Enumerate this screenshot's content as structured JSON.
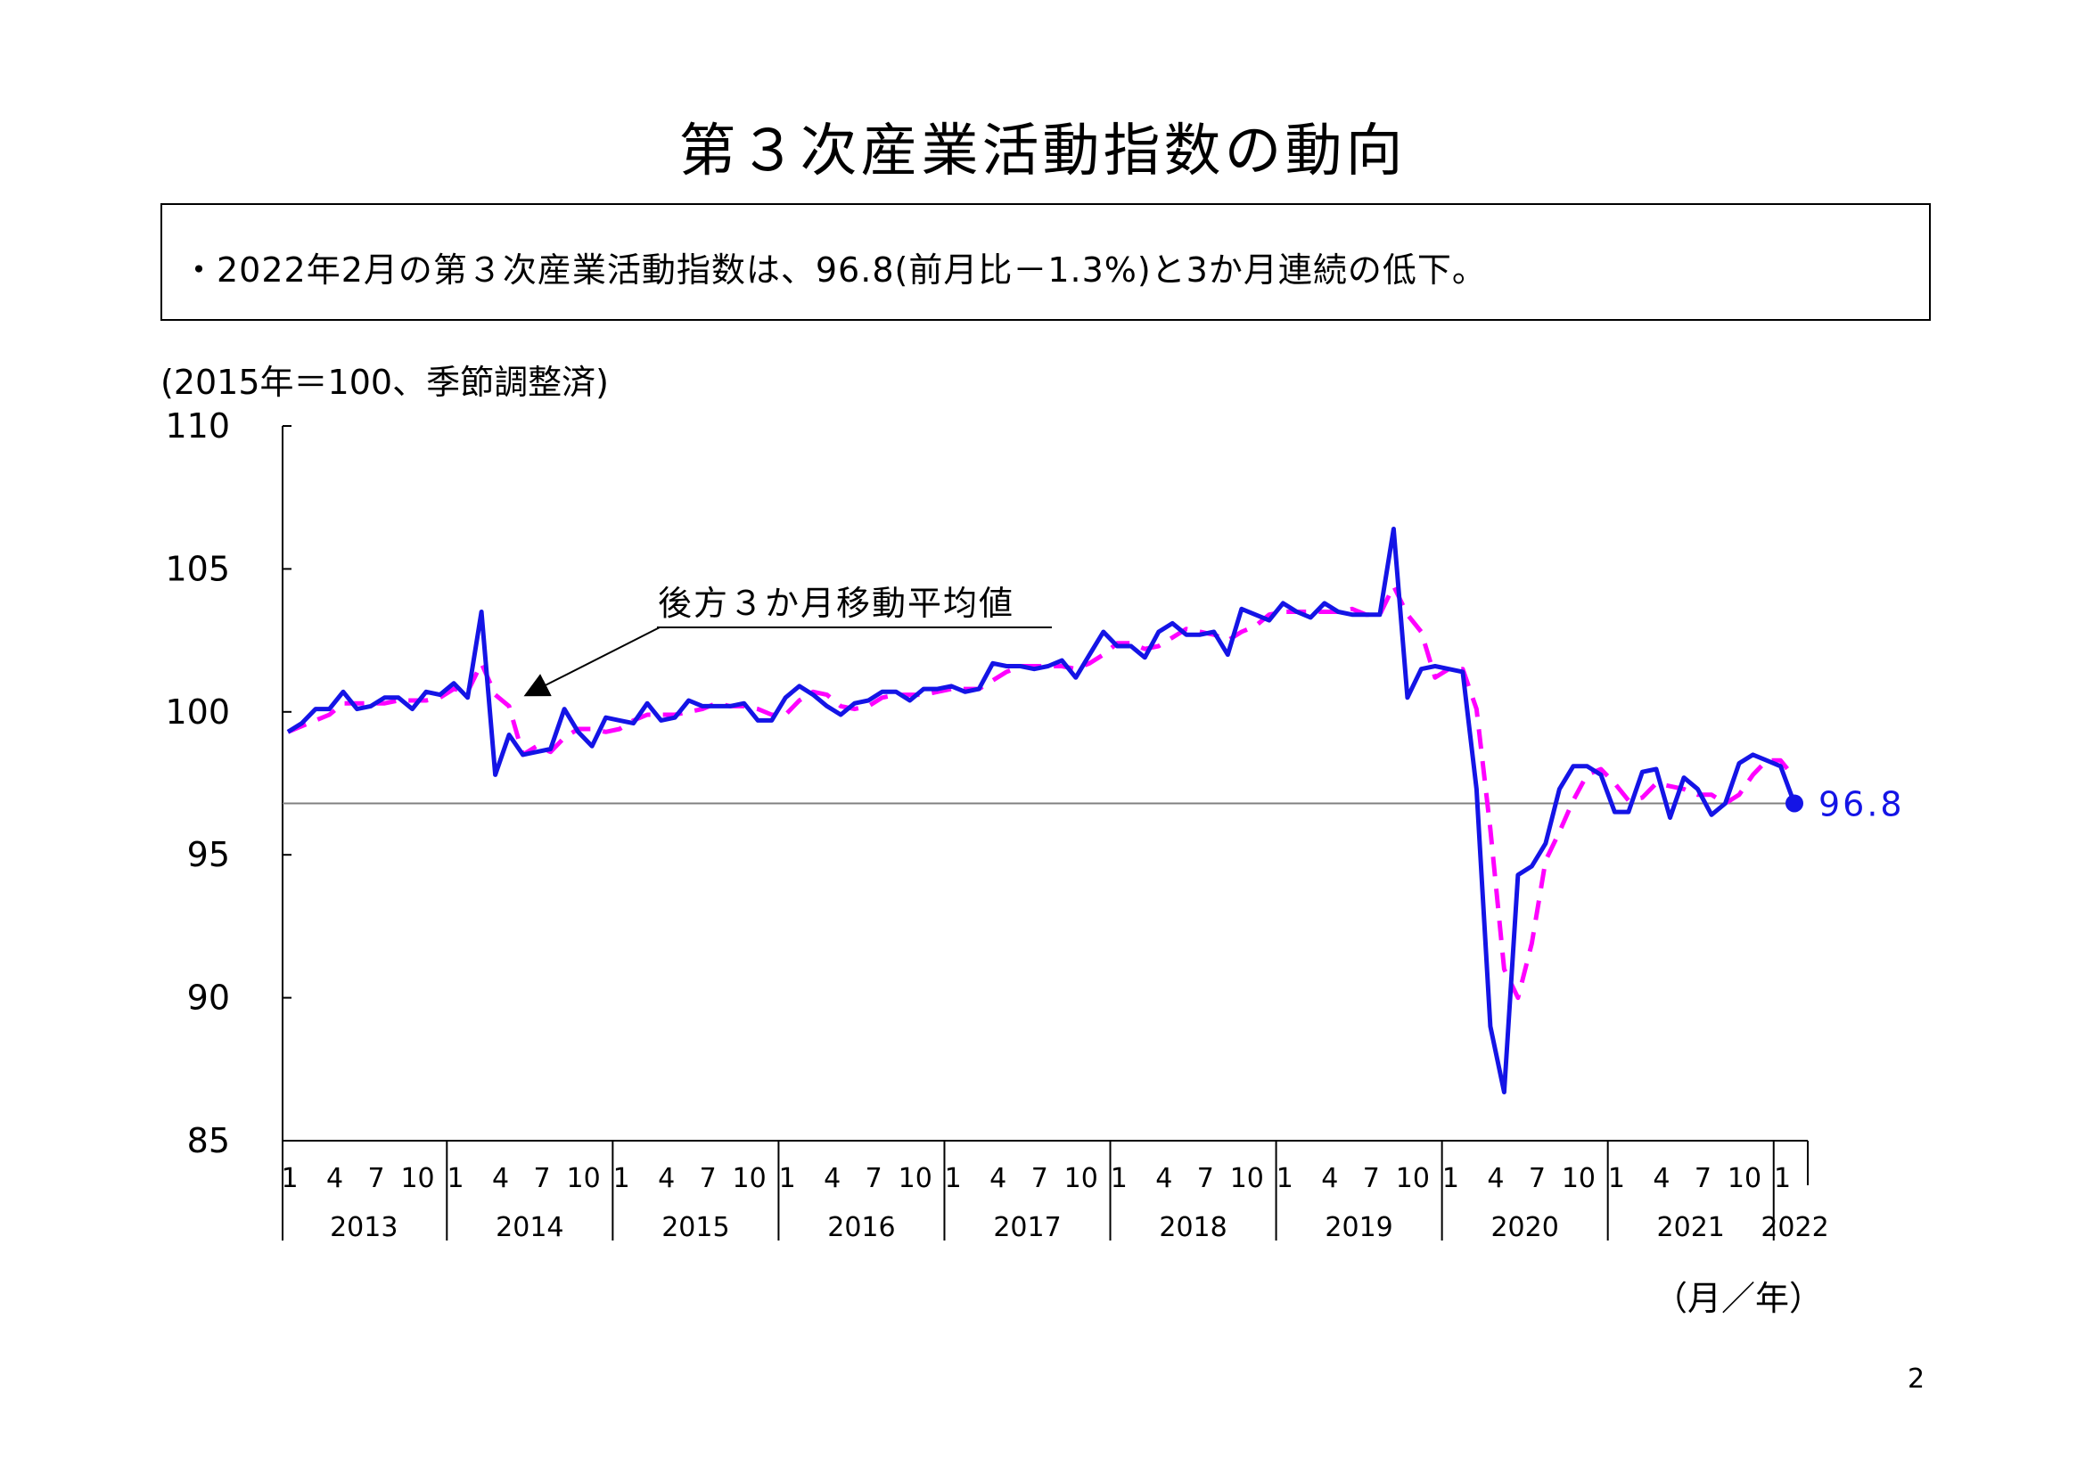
{
  "page": {
    "title": "第３次産業活動指数の動向",
    "summary": "・2022年2月の第３次産業活動指数は、96.8(前月比－1.3%)と3か月連続の低下。",
    "unit_note": "(2015年＝100、季節調整済)",
    "axis_unit_note": "（月／年）",
    "page_number": "2"
  },
  "colors": {
    "actual": "#1414E6",
    "moving_average": "#FF00FF",
    "reference_line": "#808080",
    "axis": "#000000"
  },
  "chart_data": {
    "type": "line",
    "title": "第３次産業活動指数の動向",
    "ylabel": "(2015年＝100、季節調整済)",
    "xlabel": "（月／年）",
    "ylim": [
      85,
      110
    ],
    "y_ticks": [
      85,
      90,
      95,
      100,
      105,
      110
    ],
    "years": [
      "2013",
      "2014",
      "2015",
      "2016",
      "2017",
      "2018",
      "2019",
      "2020",
      "2021",
      "2022"
    ],
    "month_tick_labels": [
      "1",
      "4",
      "7",
      "10"
    ],
    "annotation": "後方３か月移動平均値",
    "latest_value_label": "96.8",
    "reference_line_value": 96.8,
    "grid": false,
    "series": [
      {
        "values": [
          99.3,
          99.6,
          100.1,
          100.1,
          100.7,
          100.1,
          100.2,
          100.5,
          100.5,
          100.1,
          100.7,
          100.6,
          101.0,
          100.5,
          103.5,
          97.8,
          99.2,
          98.5,
          98.6,
          98.7,
          100.1,
          99.3,
          98.8,
          99.8,
          99.7,
          99.6,
          100.3,
          99.7,
          99.8,
          100.4,
          100.2,
          100.2,
          100.2,
          100.3,
          99.7,
          99.7,
          100.5,
          100.9,
          100.6,
          100.2,
          99.9,
          100.3,
          100.4,
          100.7,
          100.7,
          100.4,
          100.8,
          100.8,
          100.9,
          100.7,
          100.8,
          101.7,
          101.6,
          101.6,
          101.5,
          101.6,
          101.8,
          101.2,
          102.0,
          102.8,
          102.3,
          102.3,
          101.9,
          102.8,
          103.1,
          102.7,
          102.7,
          102.8,
          102.0,
          103.6,
          103.4,
          103.2,
          103.8,
          103.5,
          103.3,
          103.8,
          103.5,
          103.4,
          103.4,
          103.4,
          106.4,
          100.5,
          101.5,
          101.6,
          101.5,
          101.4,
          97.3,
          89.0,
          86.7,
          94.3,
          94.6,
          95.4,
          97.3,
          98.1,
          98.1,
          97.8,
          96.5,
          96.5,
          97.9,
          98.0,
          96.3,
          97.7,
          97.3,
          96.4,
          96.8,
          98.2,
          98.5,
          98.3,
          98.1,
          96.8
        ]
      },
      {
        "values": [
          99.3,
          99.5,
          99.7,
          99.9,
          100.3,
          100.3,
          100.3,
          100.3,
          100.4,
          100.4,
          100.4,
          100.5,
          100.8,
          100.7,
          101.7,
          100.6,
          100.2,
          98.5,
          98.8,
          98.6,
          99.1,
          99.4,
          99.4,
          99.3,
          99.4,
          99.7,
          99.9,
          99.9,
          99.9,
          100.0,
          100.1,
          100.3,
          100.2,
          100.2,
          100.1,
          99.9,
          99.9,
          100.4,
          100.7,
          100.6,
          100.2,
          100.1,
          100.2,
          100.5,
          100.6,
          100.6,
          100.6,
          100.7,
          100.8,
          100.8,
          100.8,
          101.1,
          101.4,
          101.6,
          101.6,
          101.6,
          101.6,
          101.5,
          101.7,
          102.0,
          102.4,
          102.4,
          102.2,
          102.3,
          102.6,
          102.9,
          102.8,
          102.7,
          102.5,
          102.8,
          103.0,
          103.4,
          103.5,
          103.5,
          103.5,
          103.5,
          103.5,
          103.6,
          103.4,
          103.4,
          104.4,
          103.4,
          102.8,
          101.2,
          101.5,
          101.5,
          100.1,
          95.9,
          91.0,
          90.0,
          91.9,
          94.8,
          95.8,
          96.9,
          97.8,
          98.0,
          97.5,
          96.9,
          97.0,
          97.5,
          97.4,
          97.3,
          97.1,
          97.1,
          96.8,
          97.1,
          97.8,
          98.3,
          98.3,
          97.7
        ]
      }
    ]
  }
}
